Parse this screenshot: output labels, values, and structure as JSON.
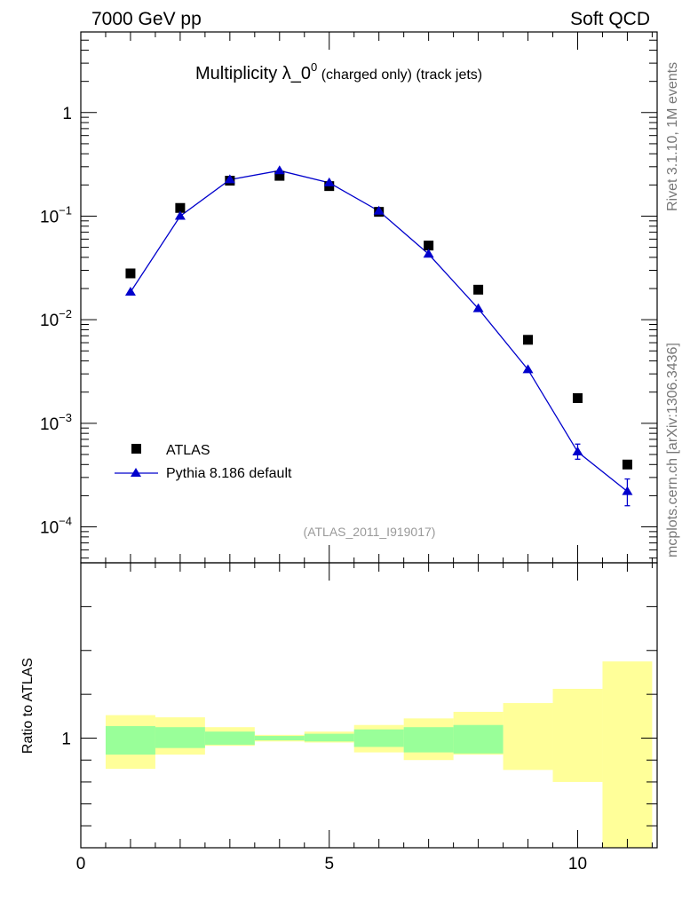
{
  "header": {
    "left": "7000 GeV pp",
    "right": "Soft QCD"
  },
  "side_text": {
    "rivet": "Rivet 3.1.10,  1M events",
    "mcplots": "mcplots.cern.ch [arXiv:1306.3436]"
  },
  "chart_data": [
    {
      "type": "scatter",
      "title_main": "Multiplicity λ_0",
      "title_sup": "0",
      "title_suffix": " (charged only) (track jets)",
      "analysis_tag": "(ATLAS_2011_I919017)",
      "xlim": [
        0,
        11.6
      ],
      "ylim": [
        4.5e-05,
        6
      ],
      "yscale": "log",
      "ytick_labels": [
        {
          "value": 1,
          "base": "1",
          "exp": ""
        },
        {
          "value": 0.1,
          "base": "10",
          "exp": "−1"
        },
        {
          "value": 0.01,
          "base": "10",
          "exp": "−2"
        },
        {
          "value": 0.001,
          "base": "10",
          "exp": "−3"
        },
        {
          "value": 0.0001,
          "base": "10",
          "exp": "−4"
        }
      ],
      "legend_position": "lower-left",
      "series": [
        {
          "name": "ATLAS",
          "marker": "square",
          "color": "#000000",
          "x": [
            1,
            2,
            3,
            4,
            5,
            6,
            7,
            8,
            9,
            10,
            11
          ],
          "y": [
            0.028,
            0.12,
            0.22,
            0.245,
            0.195,
            0.11,
            0.052,
            0.0195,
            0.0064,
            0.00175,
            0.0004
          ]
        },
        {
          "name": "Pythia 8.186 default",
          "marker": "triangle",
          "color": "#0000cc",
          "x": [
            1,
            2,
            3,
            4,
            5,
            6,
            7,
            8,
            9,
            10,
            11
          ],
          "y": [
            0.0185,
            0.1,
            0.225,
            0.275,
            0.21,
            0.112,
            0.043,
            0.0128,
            0.0033,
            0.00053,
            0.00022
          ],
          "yerr_low": [
            0,
            0,
            0,
            0,
            0,
            0,
            0,
            0,
            0,
            8e-05,
            6e-05
          ],
          "yerr_high": [
            0,
            0,
            0,
            0,
            0,
            0,
            0,
            0,
            0,
            0.0001,
            7e-05
          ]
        }
      ]
    },
    {
      "type": "area",
      "ylabel": "Ratio to ATLAS",
      "xlim": [
        0,
        11.6
      ],
      "ylim": [
        0.5,
        1.8
      ],
      "xtick_labels": [
        {
          "value": 0,
          "label": "0"
        },
        {
          "value": 5,
          "label": "5"
        },
        {
          "value": 10,
          "label": "10"
        }
      ],
      "ytick_labels": [
        {
          "value": 1,
          "label": "1"
        }
      ],
      "bands": {
        "x_low": [
          0.5,
          1.5,
          2.5,
          3.5,
          4.5,
          5.5,
          6.5,
          7.5,
          8.5,
          9.5,
          10.5
        ],
        "x_high": [
          1.5,
          2.5,
          3.5,
          4.5,
          5.5,
          6.5,
          7.5,
          8.5,
          9.5,
          10.5,
          11.5
        ],
        "stat_low": [
          0.925,
          0.955,
          0.97,
          0.99,
          0.985,
          0.96,
          0.935,
          0.93,
          0.855,
          0.8,
          0.5
        ],
        "stat_high": [
          1.055,
          1.05,
          1.03,
          1.01,
          1.02,
          1.04,
          1.05,
          1.06,
          1.16,
          1.225,
          1.35
        ],
        "total_low": [
          0.86,
          0.925,
          0.965,
          0.985,
          0.98,
          0.935,
          0.9,
          0.925,
          0.855,
          0.8,
          0.5
        ],
        "total_high": [
          1.105,
          1.095,
          1.05,
          1.015,
          1.03,
          1.06,
          1.09,
          1.12,
          1.16,
          1.225,
          1.35
        ],
        "stat_color": "#99ff99",
        "total_color": "#ffff99"
      }
    }
  ]
}
